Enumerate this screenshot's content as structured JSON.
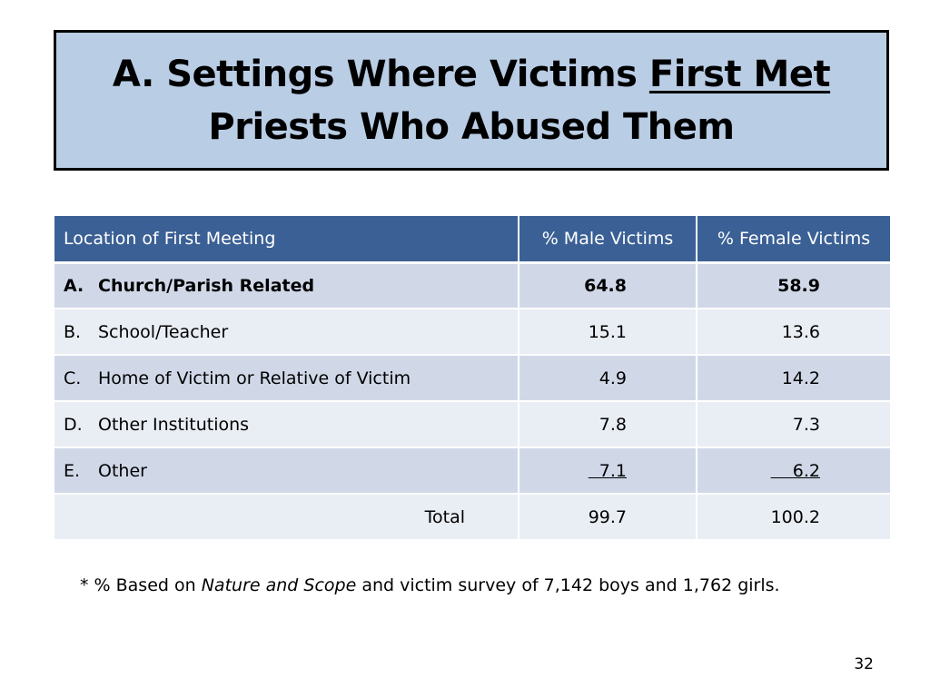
{
  "title": {
    "line1_prefix": "A. Settings Where Victims ",
    "line1_underlined": "First Met",
    "line2": "Priests Who Abused Them"
  },
  "table": {
    "headers": [
      "Location of First Meeting",
      "% Male Victims",
      "% Female Victims"
    ],
    "rows": [
      {
        "marker": "A.",
        "label": "Church/Parish Related",
        "male": "64.8",
        "female": "58.9"
      },
      {
        "marker": "B.",
        "label": "School/Teacher",
        "male": "15.1",
        "female": "13.6"
      },
      {
        "marker": "C.",
        "label": "Home of Victim or Relative of Victim",
        "male": "4.9",
        "female": "14.2"
      },
      {
        "marker": "D.",
        "label": "Other Institutions",
        "male": "7.8",
        "female": "7.3"
      },
      {
        "marker": "E.",
        "label": "Other",
        "male": "  7.1",
        "female": "    6.2"
      }
    ],
    "total": {
      "label": "Total",
      "male": "99.7",
      "female": "100.2"
    }
  },
  "footnote": {
    "prefix": "* % Based on ",
    "italic": "Nature and Scope",
    "suffix": " and victim survey of 7,142 boys and 1,762 girls."
  },
  "page_number": "32"
}
